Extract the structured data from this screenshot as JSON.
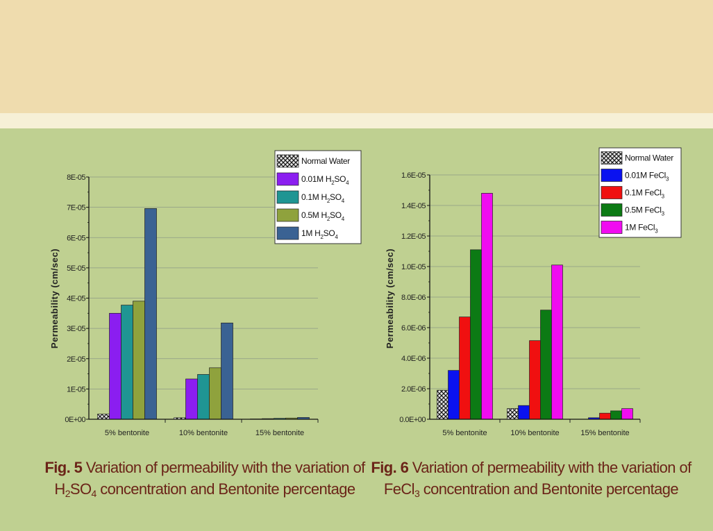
{
  "captions": {
    "fig5": {
      "label": "Fig. 5",
      "line1": "Variation of permeability with the variation of",
      "line2_pre": "H",
      "sub_a": "2",
      "line2_mid": "SO",
      "sub_b": "4",
      "line2_post": "concentration and Bentonite percentage"
    },
    "fig6": {
      "label": "Fig. 6",
      "line1": "Variation of permeability with the variation of",
      "line2_pre": "FeCl",
      "sub_a": "3",
      "line2_post": "concentration and Bentonite percentage"
    }
  },
  "chart_data": [
    {
      "type": "bar",
      "ylabel": "Permeability (cm/sec)",
      "xlabel": "",
      "categories": [
        "5% bentonite",
        "10% bentonite",
        "15% bentonite"
      ],
      "ylim": [
        0,
        8e-05
      ],
      "yticks": [
        0,
        1e-05,
        2e-05,
        3e-05,
        4e-05,
        5e-05,
        6e-05,
        7e-05,
        8e-05
      ],
      "ytick_labels": [
        "0E+00",
        "1E-05",
        "2E-05",
        "3E-05",
        "4E-05",
        "5E-05",
        "6E-05",
        "7E-05",
        "8E-05"
      ],
      "grid": true,
      "legend_position": "top-right",
      "series": [
        {
          "name": "Normal Water",
          "base": "Normal Water",
          "sub": "",
          "tail": "",
          "color": "#333333",
          "pattern": "crosshatch",
          "values": [
            1.7e-06,
            5e-07,
            1e-07
          ]
        },
        {
          "name": "0.01M H2SO4",
          "base": "0.01M H",
          "sub": "2",
          "tail": "SO",
          "sub2": "4",
          "color": "#8b1ef0",
          "values": [
            3.5e-05,
            1.33e-05,
            2e-07
          ]
        },
        {
          "name": "0.1M H2SO4",
          "base": "0.1M H",
          "sub": "2",
          "tail": "SO",
          "sub2": "4",
          "color": "#1f9593",
          "values": [
            3.77e-05,
            1.48e-05,
            3e-07
          ]
        },
        {
          "name": "0.5M H2SO4",
          "base": "0.5M H",
          "sub": "2",
          "tail": "SO",
          "sub2": "4",
          "color": "#8fa23d",
          "values": [
            3.9e-05,
            1.7e-05,
            4e-07
          ]
        },
        {
          "name": "1M H2SO4",
          "base": "1M H",
          "sub": "2",
          "tail": "SO",
          "sub2": "4",
          "color": "#3a6293",
          "values": [
            6.96e-05,
            3.18e-05,
            6e-07
          ]
        }
      ]
    },
    {
      "type": "bar",
      "ylabel": "Permeability (cm/sec)",
      "xlabel": "",
      "categories": [
        "5% bentonite",
        "10% bentonite",
        "15% bentonite"
      ],
      "ylim": [
        0,
        1.6e-05
      ],
      "yticks": [
        0,
        2e-06,
        4e-06,
        6e-06,
        8e-06,
        1e-05,
        1.2e-05,
        1.4e-05,
        1.6e-05
      ],
      "ytick_labels": [
        "0.0E+00",
        "2.0E-06",
        "4.0E-06",
        "6.0E-06",
        "8.0E-06",
        "1.0E-05",
        "1.2E-05",
        "1.4E-05",
        "1.6E-05"
      ],
      "grid": true,
      "legend_position": "top-right",
      "series": [
        {
          "name": "Normal Water",
          "base": "Normal Water",
          "sub": "",
          "tail": "",
          "color": "#333333",
          "pattern": "crosshatch",
          "values": [
            1.9e-06,
            7e-07,
            0
          ]
        },
        {
          "name": "0.01M FeCl3",
          "base": "0.01M FeCl",
          "sub": "3",
          "tail": "",
          "color": "#0a12f0",
          "values": [
            3.2e-06,
            9e-07,
            1e-07
          ]
        },
        {
          "name": "0.1M FeCl3",
          "base": "0.1M FeCl",
          "sub": "3",
          "tail": "",
          "color": "#f01010",
          "values": [
            6.7e-06,
            5.15e-06,
            4e-07
          ]
        },
        {
          "name": "0.5M FeCl3",
          "base": "0.5M FeCl",
          "sub": "3",
          "tail": "",
          "color": "#0c7a14",
          "values": [
            1.11e-05,
            7.15e-06,
            5.5e-07
          ]
        },
        {
          "name": "1M FeCl3",
          "base": "1M FeCl",
          "sub": "3",
          "tail": "",
          "color": "#f00cf0",
          "values": [
            1.48e-05,
            1.01e-05,
            7e-07
          ]
        }
      ]
    }
  ]
}
